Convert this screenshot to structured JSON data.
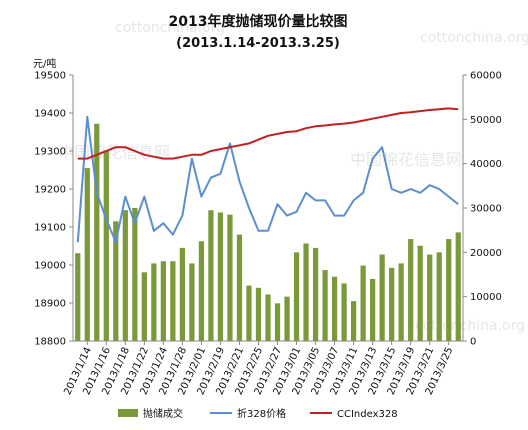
{
  "watermarks": [
    "cottonchina.org",
    "cottonchina.org",
    "cottonchina.org",
    "中国棉花信息网",
    "中国棉花信息网"
  ],
  "chart_data": {
    "type": "bar",
    "title": "2013年度抛储现价量比较图",
    "subtitle": "(2013.1.14-2013.3.25)",
    "ylabel": "元/吨",
    "y_left_lim": [
      18800,
      19500
    ],
    "y_left_ticks": [
      "18800",
      "18900",
      "19000",
      "19100",
      "19200",
      "19300",
      "19400",
      "19500"
    ],
    "y_right_lim": [
      0,
      60000
    ],
    "y_right_ticks": [
      "0",
      "10000",
      "20000",
      "30000",
      "40000",
      "50000",
      "60000"
    ],
    "x_tick_labels": [
      "2013/1/14",
      "2013/1/16",
      "2013/1/18",
      "2013/1/22",
      "2013/1/24",
      "2013/1/28",
      "2013/2/01",
      "2013/2/19",
      "2013/2/21",
      "2013/2/25",
      "2013/2/27",
      "2013/3/01",
      "2013/3/05",
      "2013/3/07",
      "2013/3/11",
      "2013/3/13",
      "2013/3/15",
      "2013/3/19",
      "2013/3/21",
      "2013/3/25"
    ],
    "grid": false,
    "legend_position": "bottom",
    "series": [
      {
        "name": "抛储成交",
        "type": "bar",
        "axis": "right",
        "color": "#7a9a3a",
        "values": [
          19800,
          39000,
          49000,
          43000,
          27000,
          29500,
          30000,
          15500,
          17500,
          18000,
          18000,
          21000,
          17500,
          22500,
          29500,
          29000,
          28500,
          24000,
          12500,
          12000,
          10500,
          8500,
          10000,
          20000,
          22000,
          21000,
          16000,
          14500,
          13000,
          9000,
          17000,
          14000,
          19500,
          16500,
          17500,
          23000,
          21500,
          19500,
          20000,
          23000,
          24500
        ]
      },
      {
        "name": "折328价格",
        "type": "line",
        "axis": "left",
        "color": "#5b8fd0",
        "values": [
          19060,
          19390,
          19190,
          19120,
          19060,
          19180,
          19110,
          19180,
          19090,
          19110,
          19080,
          19130,
          19280,
          19180,
          19230,
          19240,
          19320,
          19220,
          19150,
          19090,
          19090,
          19160,
          19130,
          19140,
          19190,
          19170,
          19170,
          19130,
          19130,
          19170,
          19190,
          19280,
          19310,
          19200,
          19190,
          19200,
          19190,
          19210,
          19200,
          19180,
          19160
        ]
      },
      {
        "name": "CCIndex328",
        "type": "line",
        "axis": "left",
        "color": "#c02020",
        "values": [
          19280,
          19280,
          19290,
          19300,
          19310,
          19310,
          19300,
          19290,
          19285,
          19280,
          19280,
          19285,
          19290,
          19290,
          19300,
          19305,
          19310,
          19315,
          19320,
          19330,
          19340,
          19345,
          19350,
          19352,
          19360,
          19365,
          19367,
          19370,
          19372,
          19375,
          19380,
          19385,
          19390,
          19395,
          19400,
          19402,
          19405,
          19408,
          19410,
          19412,
          19410
        ]
      }
    ]
  }
}
